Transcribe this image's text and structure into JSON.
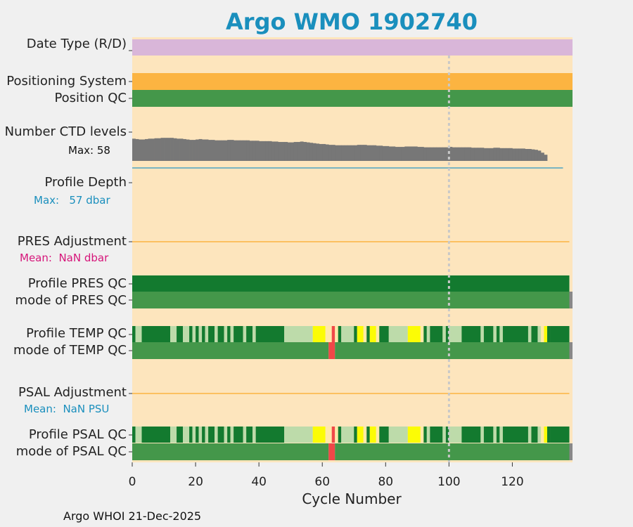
{
  "chart_data": {
    "type": "quality_control_timeline",
    "title": "Argo WMO 1902740",
    "xlabel": "Cycle Number",
    "xlim": [
      0,
      139
    ],
    "xticks": [
      0,
      20,
      40,
      60,
      80,
      100,
      120
    ],
    "reference_cycle": 100,
    "rows": {
      "date_type": {
        "label": "Date Type (R/D)",
        "color": "#d9b6d9"
      },
      "positioning_system": {
        "label": "Positioning System",
        "color": "#fcb441"
      },
      "position_qc": {
        "label": "Position QC",
        "color": "#44974a"
      },
      "ctd_levels": {
        "label": "Number CTD levels",
        "max_text": "Max: 58",
        "max": 58,
        "values": [
          54,
          53,
          52,
          52,
          53,
          54,
          54,
          55,
          55,
          56,
          56,
          56,
          56,
          55,
          54,
          54,
          53,
          52,
          51,
          51,
          52,
          53,
          52,
          52,
          51,
          51,
          50,
          50,
          50,
          50,
          51,
          51,
          50,
          50,
          50,
          50,
          50,
          49,
          49,
          49,
          48,
          48,
          48,
          48,
          47,
          47,
          46,
          46,
          46,
          45,
          45,
          46,
          46,
          47,
          46,
          45,
          44,
          43,
          42,
          41,
          41,
          40,
          39,
          39,
          38,
          38,
          38,
          38,
          38,
          38,
          38,
          39,
          39,
          39,
          38,
          38,
          38,
          37,
          37,
          36,
          36,
          35,
          35,
          34,
          34,
          34,
          35,
          35,
          35,
          35,
          34,
          34,
          33,
          33,
          33,
          33,
          33,
          33,
          33,
          33,
          34,
          33,
          33,
          33,
          33,
          33,
          33,
          32,
          32,
          32,
          32,
          31,
          31,
          31,
          32,
          32,
          31,
          31,
          31,
          31,
          30,
          30,
          30,
          30,
          29,
          29,
          28,
          27,
          25,
          20,
          15
        ]
      },
      "profile_depth": {
        "label": "Profile Depth",
        "max_text": "Max:   57 dbar",
        "max": 57
      },
      "pres_adjustment": {
        "label": "PRES Adjustment",
        "mean_text": "Mean:  NaN dbar"
      },
      "profile_pres_qc": {
        "label": "Profile PRES QC"
      },
      "mode_pres_qc": {
        "label": "mode of PRES QC"
      },
      "profile_temp_qc": {
        "label": "Profile TEMP QC"
      },
      "mode_temp_qc": {
        "label": "mode of TEMP QC"
      },
      "psal_adjustment": {
        "label": "PSAL Adjustment",
        "mean_text": "Mean:  NaN PSU"
      },
      "profile_psal_qc": {
        "label": "Profile PSAL QC"
      },
      "mode_psal_qc": {
        "label": "mode of PSAL QC"
      }
    },
    "profile_qc_segments": [
      {
        "start": 0,
        "end": 1,
        "grade": "A"
      },
      {
        "start": 1,
        "end": 3,
        "grade": "B"
      },
      {
        "start": 3,
        "end": 12,
        "grade": "A"
      },
      {
        "start": 12,
        "end": 14,
        "grade": "B"
      },
      {
        "start": 14,
        "end": 16,
        "grade": "A"
      },
      {
        "start": 16,
        "end": 18,
        "grade": "B"
      },
      {
        "start": 18,
        "end": 19,
        "grade": "A"
      },
      {
        "start": 19,
        "end": 20,
        "grade": "B"
      },
      {
        "start": 20,
        "end": 21,
        "grade": "A"
      },
      {
        "start": 21,
        "end": 22,
        "grade": "B"
      },
      {
        "start": 22,
        "end": 23,
        "grade": "A"
      },
      {
        "start": 23,
        "end": 24,
        "grade": "B"
      },
      {
        "start": 24,
        "end": 26,
        "grade": "A"
      },
      {
        "start": 26,
        "end": 27,
        "grade": "B"
      },
      {
        "start": 27,
        "end": 29,
        "grade": "A"
      },
      {
        "start": 29,
        "end": 30,
        "grade": "B"
      },
      {
        "start": 30,
        "end": 31,
        "grade": "A"
      },
      {
        "start": 31,
        "end": 32,
        "grade": "B"
      },
      {
        "start": 32,
        "end": 35,
        "grade": "A"
      },
      {
        "start": 35,
        "end": 36,
        "grade": "B"
      },
      {
        "start": 36,
        "end": 38,
        "grade": "A"
      },
      {
        "start": 38,
        "end": 39,
        "grade": "B"
      },
      {
        "start": 39,
        "end": 48,
        "grade": "A"
      },
      {
        "start": 48,
        "end": 57,
        "grade": "B"
      },
      {
        "start": 57,
        "end": 61,
        "grade": "C"
      },
      {
        "start": 61,
        "end": 63,
        "grade": "D"
      },
      {
        "start": 63,
        "end": 64,
        "grade": "E"
      },
      {
        "start": 64,
        "end": 65,
        "grade": "D"
      },
      {
        "start": 65,
        "end": 66,
        "grade": "A"
      },
      {
        "start": 66,
        "end": 70,
        "grade": "B"
      },
      {
        "start": 70,
        "end": 71,
        "grade": "A"
      },
      {
        "start": 71,
        "end": 73,
        "grade": "C"
      },
      {
        "start": 73,
        "end": 74,
        "grade": "D"
      },
      {
        "start": 74,
        "end": 75,
        "grade": "A"
      },
      {
        "start": 75,
        "end": 77,
        "grade": "C"
      },
      {
        "start": 77,
        "end": 78,
        "grade": "D"
      },
      {
        "start": 78,
        "end": 81,
        "grade": "A"
      },
      {
        "start": 81,
        "end": 87,
        "grade": "B"
      },
      {
        "start": 87,
        "end": 91,
        "grade": "C"
      },
      {
        "start": 91,
        "end": 92,
        "grade": "D"
      },
      {
        "start": 92,
        "end": 93,
        "grade": "A"
      },
      {
        "start": 93,
        "end": 94,
        "grade": "B"
      },
      {
        "start": 94,
        "end": 98,
        "grade": "A"
      },
      {
        "start": 98,
        "end": 99,
        "grade": "B"
      },
      {
        "start": 99,
        "end": 100,
        "grade": "A"
      },
      {
        "start": 100,
        "end": 104,
        "grade": "B"
      },
      {
        "start": 104,
        "end": 110,
        "grade": "A"
      },
      {
        "start": 110,
        "end": 111,
        "grade": "B"
      },
      {
        "start": 111,
        "end": 114,
        "grade": "A"
      },
      {
        "start": 114,
        "end": 115,
        "grade": "B"
      },
      {
        "start": 115,
        "end": 116,
        "grade": "A"
      },
      {
        "start": 116,
        "end": 117,
        "grade": "B"
      },
      {
        "start": 117,
        "end": 125,
        "grade": "A"
      },
      {
        "start": 125,
        "end": 126,
        "grade": "B"
      },
      {
        "start": 126,
        "end": 128,
        "grade": "A"
      },
      {
        "start": 128,
        "end": 129,
        "grade": "B"
      },
      {
        "start": 129,
        "end": 130,
        "grade": "D"
      },
      {
        "start": 130,
        "end": 131,
        "grade": "C"
      },
      {
        "start": 131,
        "end": 132,
        "grade": "A"
      },
      {
        "start": 132,
        "end": 138,
        "grade": "A"
      }
    ],
    "mode_qc_segments": [
      {
        "start": 0,
        "end": 62,
        "flag": "good"
      },
      {
        "start": 62,
        "end": 64,
        "flag": "bad"
      },
      {
        "start": 64,
        "end": 138,
        "flag": "good"
      },
      {
        "start": 138,
        "end": 139,
        "flag": "missing"
      }
    ],
    "colors": {
      "background": "#fde5bd",
      "grade_A": "#137a2f",
      "grade_B": "#bddbaa",
      "grade_C": "#fcfc05",
      "grade_D": "#ffe9a8",
      "grade_E": "#f04848",
      "good": "#44974a",
      "bad": "#f04848",
      "missing": "#888888",
      "depth_line": "#2b98c4",
      "adjustment_line": "#fcb441",
      "ctd_fill": "#777777",
      "pres_qc_fill": "#137a2f"
    }
  },
  "footer": "Argo WHOI 21-Dec-2025"
}
